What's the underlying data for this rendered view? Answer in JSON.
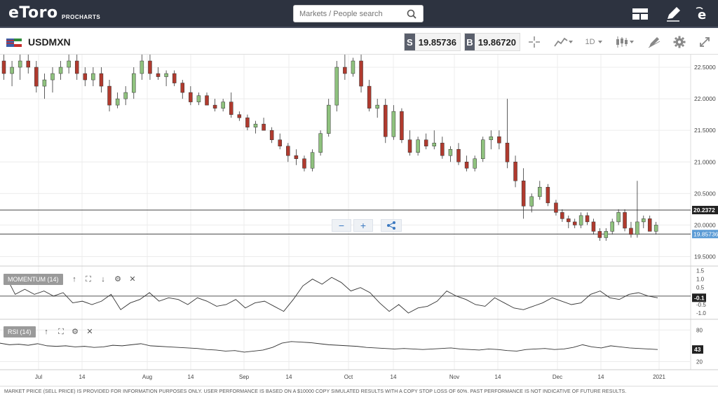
{
  "app": {
    "logo": "eToro",
    "product": "PROCHARTS"
  },
  "search": {
    "placeholder": "Markets / People search",
    "value": ""
  },
  "topbar_icons": [
    "layout-icon",
    "pencil-icon",
    "etoro-e-icon"
  ],
  "instrument": {
    "symbol": "USDMXN",
    "sell_letter": "S",
    "sell_price": "19.85736",
    "buy_letter": "B",
    "buy_price": "19.86720",
    "timeframe": "1D"
  },
  "price_axis": {
    "labels": [
      "22.5000",
      "22.0000",
      "21.5000",
      "21.0000",
      "20.5000",
      "20.0000",
      "19.5000"
    ],
    "values": [
      22.5,
      22.0,
      21.5,
      21.0,
      20.5,
      20.0,
      19.5
    ],
    "hline_high": "20.2372",
    "hline_low": "19.85736",
    "current_label": "19.85736"
  },
  "time_axis": {
    "labels": [
      "Jul",
      "14",
      "Aug",
      "14",
      "Sep",
      "14",
      "Oct",
      "14",
      "Nov",
      "14",
      "Dec",
      "14",
      "2021"
    ]
  },
  "colors": {
    "up": "#8fc27e",
    "down": "#b03a2e",
    "topbar": "#2d3340",
    "accent": "#3a78c0"
  },
  "momentum": {
    "label": "MOMENTUM (14)",
    "axis_labels": [
      "1.5",
      "1.0",
      "0.5",
      "-0.5",
      "-1.0"
    ],
    "axis_values": [
      1.5,
      1.0,
      0.5,
      -0.5,
      -1.0
    ],
    "current": "-0.1",
    "values": [
      1.2,
      0.1,
      0.4,
      0.1,
      0.3,
      0.0,
      0.2,
      -0.4,
      -0.3,
      -0.5,
      -0.3,
      0.1,
      -0.8,
      -0.4,
      -0.2,
      0.2,
      -0.3,
      -0.1,
      -0.2,
      -0.5,
      -0.1,
      -0.3,
      -0.6,
      -0.5,
      -0.2,
      -0.7,
      -0.4,
      -0.3,
      -0.6,
      -0.9,
      -0.2,
      0.6,
      1.0,
      0.7,
      1.1,
      0.8,
      0.3,
      0.5,
      0.2,
      -0.4,
      -0.9,
      -0.5,
      -1.0,
      -0.7,
      -0.6,
      -0.3,
      0.3,
      0.0,
      -0.2,
      -0.5,
      -0.6,
      -0.1,
      -0.4,
      -0.7,
      -0.8,
      -0.6,
      -0.4,
      -0.1,
      -0.3,
      -0.5,
      -0.4,
      0.1,
      0.3,
      -0.1,
      -0.2,
      0.1,
      0.2,
      0.0,
      -0.1
    ]
  },
  "rsi": {
    "label": "RSI (14)",
    "axis_labels": [
      "80",
      "20"
    ],
    "axis_values": [
      80,
      20
    ],
    "current": "43",
    "values": [
      55,
      52,
      53,
      51,
      54,
      50,
      49,
      50,
      48,
      49,
      47,
      48,
      51,
      50,
      52,
      54,
      50,
      49,
      48,
      47,
      46,
      45,
      43,
      42,
      40,
      41,
      38,
      40,
      42,
      47,
      55,
      58,
      57,
      56,
      54,
      52,
      51,
      50,
      49,
      47,
      46,
      45,
      44,
      45,
      44,
      43,
      44,
      45,
      46,
      44,
      43,
      42,
      44,
      43,
      41,
      40,
      43,
      44,
      45,
      43,
      44,
      47,
      52,
      48,
      46,
      50,
      48,
      46,
      45,
      44,
      43
    ]
  },
  "candles": [
    [
      22.6,
      22.8,
      22.3,
      22.4
    ],
    [
      22.4,
      22.6,
      22.2,
      22.5
    ],
    [
      22.5,
      22.7,
      22.3,
      22.6
    ],
    [
      22.6,
      22.8,
      22.4,
      22.5
    ],
    [
      22.5,
      22.6,
      22.1,
      22.2
    ],
    [
      22.2,
      22.4,
      22.0,
      22.3
    ],
    [
      22.3,
      22.5,
      22.1,
      22.4
    ],
    [
      22.4,
      22.6,
      22.3,
      22.5
    ],
    [
      22.5,
      22.7,
      22.4,
      22.6
    ],
    [
      22.6,
      22.7,
      22.3,
      22.4
    ],
    [
      22.4,
      22.5,
      22.2,
      22.3
    ],
    [
      22.3,
      22.5,
      22.2,
      22.4
    ],
    [
      22.4,
      22.5,
      22.1,
      22.2
    ],
    [
      22.2,
      22.3,
      21.8,
      21.9
    ],
    [
      21.9,
      22.1,
      21.85,
      22.0
    ],
    [
      22.0,
      22.2,
      21.9,
      22.1
    ],
    [
      22.1,
      22.5,
      22.0,
      22.4
    ],
    [
      22.4,
      22.7,
      22.3,
      22.6
    ],
    [
      22.6,
      22.7,
      22.3,
      22.4
    ],
    [
      22.4,
      22.5,
      22.3,
      22.35
    ],
    [
      22.35,
      22.45,
      22.2,
      22.4
    ],
    [
      22.4,
      22.45,
      22.2,
      22.25
    ],
    [
      22.25,
      22.3,
      22.0,
      22.1
    ],
    [
      22.1,
      22.2,
      21.9,
      21.95
    ],
    [
      21.95,
      22.1,
      21.9,
      22.05
    ],
    [
      22.05,
      22.1,
      21.9,
      21.9
    ],
    [
      21.9,
      22.0,
      21.8,
      21.85
    ],
    [
      21.85,
      22.0,
      21.8,
      21.95
    ],
    [
      21.95,
      22.1,
      21.7,
      21.75
    ],
    [
      21.75,
      21.8,
      21.65,
      21.7
    ],
    [
      21.7,
      21.75,
      21.5,
      21.55
    ],
    [
      21.55,
      21.65,
      21.45,
      21.6
    ],
    [
      21.6,
      21.7,
      21.5,
      21.5
    ],
    [
      21.5,
      21.55,
      21.3,
      21.35
    ],
    [
      21.35,
      21.45,
      21.2,
      21.25
    ],
    [
      21.25,
      21.3,
      21.0,
      21.1
    ],
    [
      21.1,
      21.2,
      20.95,
      21.05
    ],
    [
      21.05,
      21.1,
      20.85,
      20.9
    ],
    [
      20.9,
      21.2,
      20.85,
      21.15
    ],
    [
      21.15,
      21.5,
      21.1,
      21.45
    ],
    [
      21.45,
      22.0,
      21.4,
      21.9
    ],
    [
      21.9,
      22.6,
      21.8,
      22.5
    ],
    [
      22.5,
      22.7,
      22.3,
      22.4
    ],
    [
      22.4,
      22.65,
      22.35,
      22.6
    ],
    [
      22.6,
      22.7,
      22.1,
      22.2
    ],
    [
      22.2,
      22.3,
      21.8,
      21.85
    ],
    [
      21.85,
      22.0,
      21.7,
      21.9
    ],
    [
      21.9,
      22.0,
      21.3,
      21.4
    ],
    [
      21.4,
      21.9,
      21.35,
      21.8
    ],
    [
      21.8,
      21.85,
      21.3,
      21.35
    ],
    [
      21.35,
      21.5,
      21.1,
      21.15
    ],
    [
      21.15,
      21.4,
      21.1,
      21.35
    ],
    [
      21.35,
      21.45,
      21.2,
      21.25
    ],
    [
      21.25,
      21.5,
      21.2,
      21.3
    ],
    [
      21.3,
      21.4,
      21.05,
      21.1
    ],
    [
      21.1,
      21.25,
      21.0,
      21.2
    ],
    [
      21.2,
      21.3,
      20.95,
      21.0
    ],
    [
      21.0,
      21.1,
      20.85,
      20.9
    ],
    [
      20.9,
      21.1,
      20.85,
      21.05
    ],
    [
      21.05,
      21.4,
      21.0,
      21.35
    ],
    [
      21.35,
      21.5,
      21.2,
      21.4
    ],
    [
      21.4,
      21.5,
      21.2,
      21.3
    ],
    [
      21.3,
      22.0,
      20.9,
      21.0
    ],
    [
      21.0,
      21.1,
      20.6,
      20.7
    ],
    [
      20.7,
      20.9,
      20.1,
      20.3
    ],
    [
      20.3,
      20.5,
      20.2,
      20.45
    ],
    [
      20.45,
      20.7,
      20.4,
      20.6
    ],
    [
      20.6,
      20.65,
      20.3,
      20.35
    ]
  ]
}
